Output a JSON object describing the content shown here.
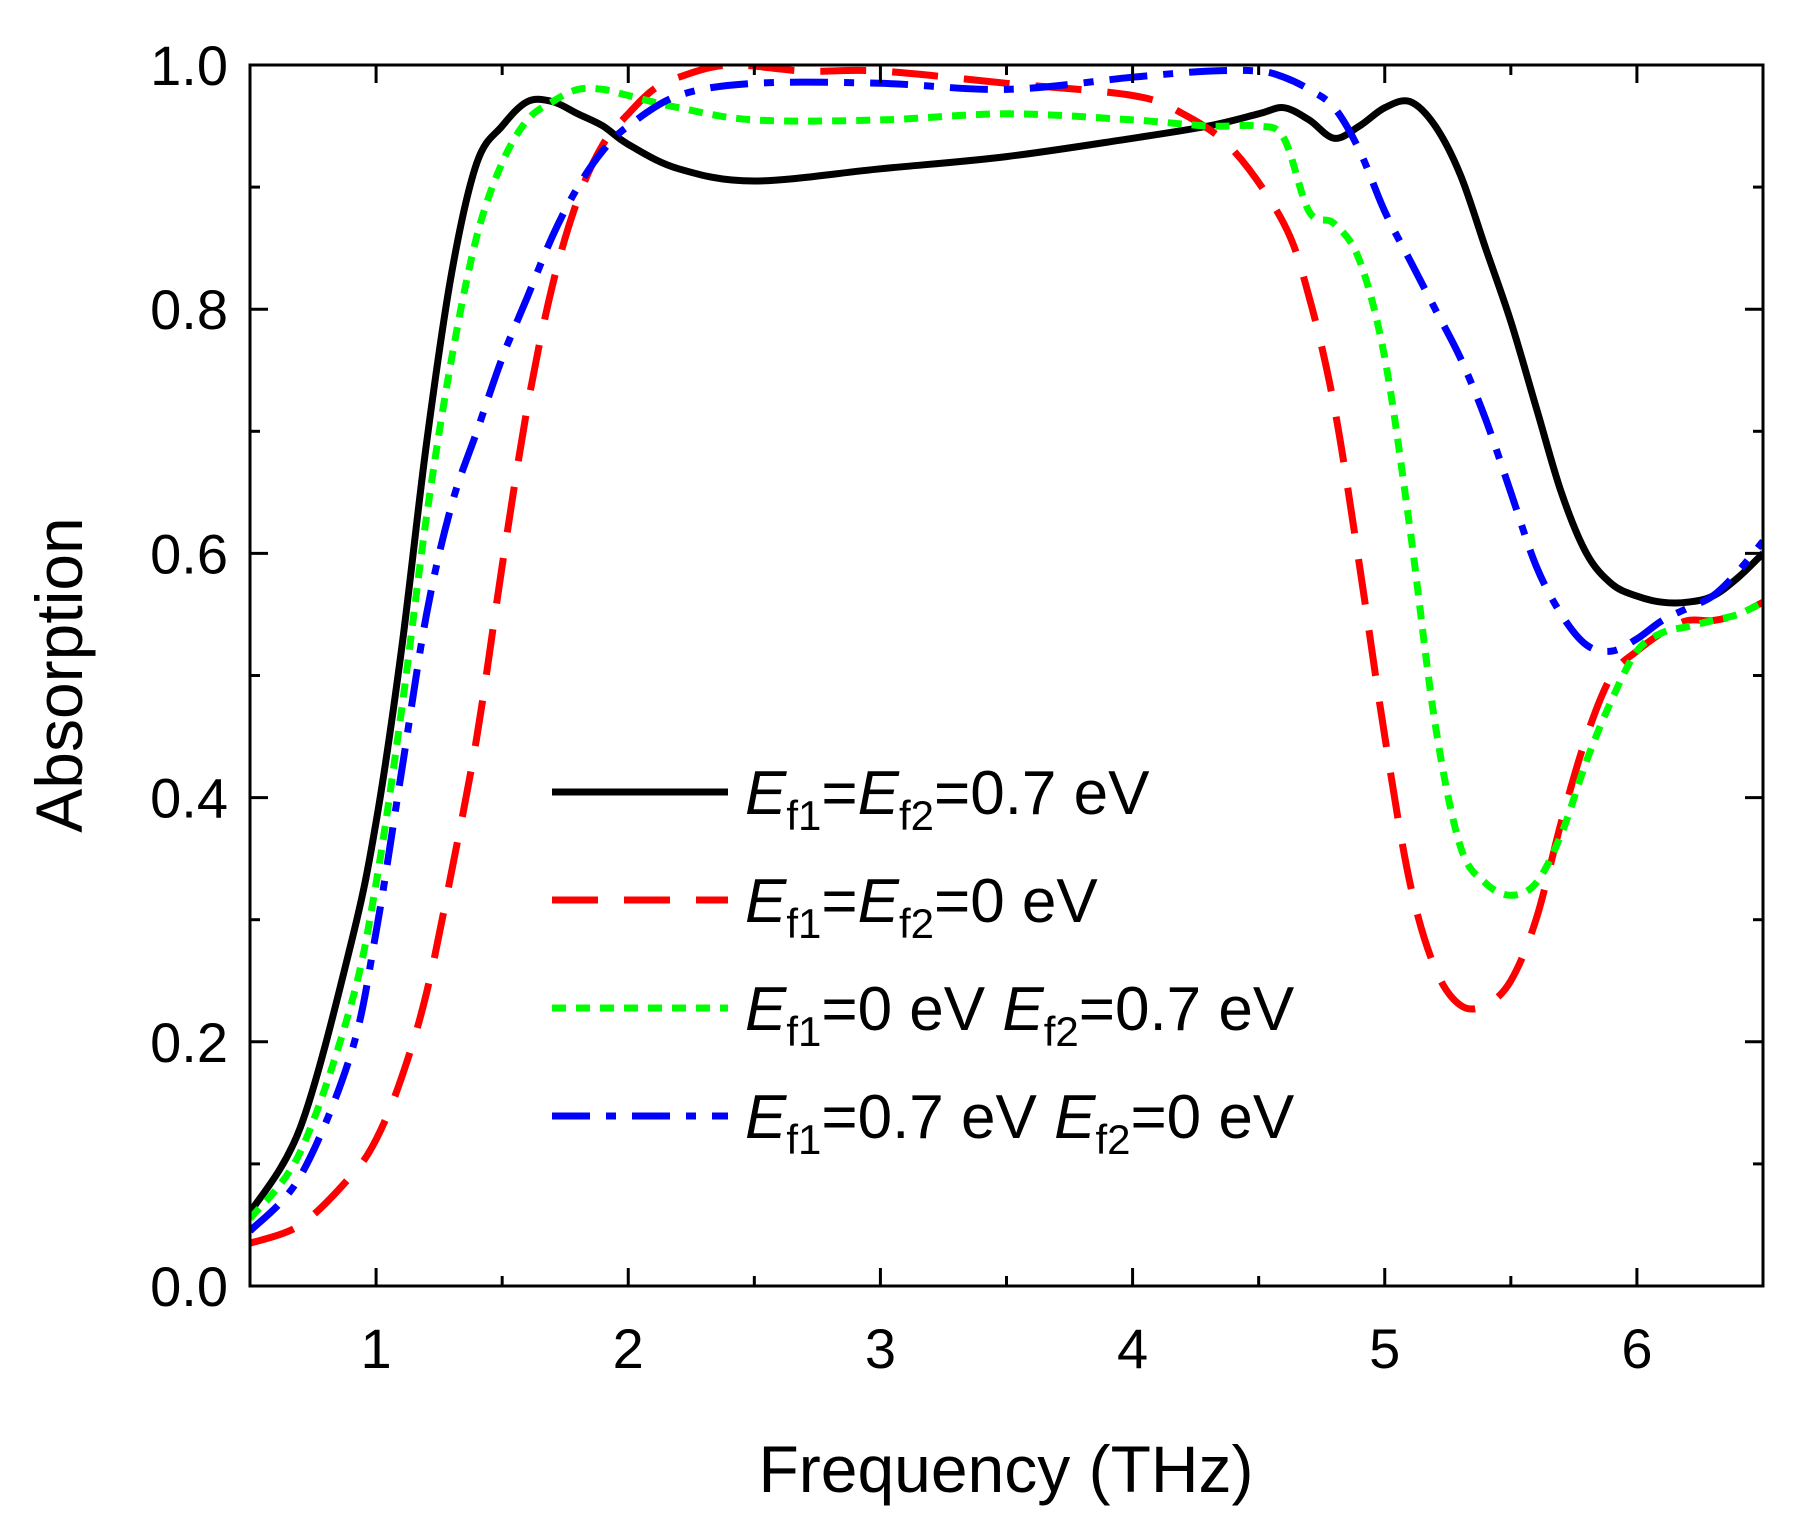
{
  "chart_data": {
    "type": "line",
    "title": "",
    "xlabel": "Frequency (THz)",
    "ylabel": "Absorption",
    "xlim": [
      0.5,
      6.5
    ],
    "ylim": [
      0.0,
      1.0
    ],
    "xticks": [
      "1",
      "2",
      "3",
      "4",
      "5",
      "6"
    ],
    "xtick_values": [
      1,
      2,
      3,
      4,
      5,
      6
    ],
    "yticks": [
      "0.0",
      "0.2",
      "0.4",
      "0.6",
      "0.8",
      "1.0"
    ],
    "ytick_values": [
      0.0,
      0.2,
      0.4,
      0.6,
      0.8,
      1.0
    ],
    "grid": false,
    "legend_position": "center-bottom",
    "series": [
      {
        "name": "Ef1=Ef2=0.7 eV",
        "label_parts": [
          {
            "t": "E",
            "italic": true
          },
          {
            "t": "f1",
            "sub": true
          },
          {
            "t": "="
          },
          {
            "t": "E",
            "italic": true
          },
          {
            "t": "f2",
            "sub": true
          },
          {
            "t": "=0.7 eV"
          }
        ],
        "color": "#000000",
        "style": "solid",
        "x": [
          0.5,
          0.7,
          0.9,
          1.0,
          1.1,
          1.2,
          1.3,
          1.4,
          1.5,
          1.6,
          1.7,
          1.8,
          1.9,
          2.0,
          2.2,
          2.5,
          3.0,
          3.5,
          4.0,
          4.3,
          4.5,
          4.6,
          4.7,
          4.8,
          4.9,
          5.0,
          5.1,
          5.2,
          5.3,
          5.4,
          5.5,
          5.6,
          5.7,
          5.8,
          5.9,
          6.0,
          6.1,
          6.2,
          6.3,
          6.4,
          6.5
        ],
        "y": [
          0.06,
          0.13,
          0.28,
          0.38,
          0.52,
          0.69,
          0.83,
          0.92,
          0.95,
          0.97,
          0.97,
          0.96,
          0.95,
          0.935,
          0.915,
          0.905,
          0.915,
          0.925,
          0.94,
          0.95,
          0.96,
          0.965,
          0.955,
          0.94,
          0.95,
          0.965,
          0.97,
          0.95,
          0.91,
          0.85,
          0.79,
          0.72,
          0.65,
          0.6,
          0.575,
          0.565,
          0.56,
          0.56,
          0.565,
          0.58,
          0.6
        ]
      },
      {
        "name": "Ef1=Ef2=0 eV",
        "label_parts": [
          {
            "t": "E",
            "italic": true
          },
          {
            "t": "f1",
            "sub": true
          },
          {
            "t": "="
          },
          {
            "t": "E",
            "italic": true
          },
          {
            "t": "f2",
            "sub": true
          },
          {
            "t": "=0 eV"
          }
        ],
        "color": "#ff0000",
        "style": "dashed",
        "x": [
          0.5,
          0.7,
          0.9,
          1.0,
          1.1,
          1.2,
          1.3,
          1.4,
          1.5,
          1.6,
          1.7,
          1.8,
          1.9,
          2.0,
          2.1,
          2.2,
          2.4,
          2.7,
          3.0,
          3.5,
          4.0,
          4.2,
          4.4,
          4.6,
          4.7,
          4.8,
          4.9,
          5.0,
          5.1,
          5.2,
          5.3,
          5.4,
          5.5,
          5.6,
          5.7,
          5.8,
          5.9,
          6.0,
          6.1,
          6.2,
          6.3,
          6.4,
          6.5
        ],
        "y": [
          0.035,
          0.05,
          0.09,
          0.12,
          0.17,
          0.24,
          0.34,
          0.45,
          0.59,
          0.72,
          0.82,
          0.89,
          0.935,
          0.96,
          0.98,
          0.99,
          1.0,
          0.995,
          0.995,
          0.985,
          0.975,
          0.96,
          0.93,
          0.87,
          0.81,
          0.72,
          0.59,
          0.45,
          0.33,
          0.26,
          0.23,
          0.23,
          0.25,
          0.3,
          0.38,
          0.45,
          0.5,
          0.52,
          0.535,
          0.545,
          0.545,
          0.55,
          0.56
        ]
      },
      {
        "name": "Ef1=0 eV Ef2=0.7 eV",
        "label_parts": [
          {
            "t": "E",
            "italic": true
          },
          {
            "t": "f1",
            "sub": true
          },
          {
            "t": "=0 eV "
          },
          {
            "t": "E",
            "italic": true
          },
          {
            "t": "f2",
            "sub": true
          },
          {
            "t": "=0.7 eV"
          }
        ],
        "color": "#00ff00",
        "style": "dotted",
        "x": [
          0.5,
          0.7,
          0.9,
          1.0,
          1.1,
          1.2,
          1.3,
          1.4,
          1.5,
          1.6,
          1.7,
          1.8,
          1.9,
          2.0,
          2.2,
          2.5,
          3.0,
          3.5,
          4.0,
          4.3,
          4.5,
          4.6,
          4.7,
          4.8,
          4.9,
          5.0,
          5.1,
          5.2,
          5.3,
          5.4,
          5.5,
          5.6,
          5.7,
          5.8,
          5.9,
          6.0,
          6.1,
          6.2,
          6.3,
          6.4,
          6.5
        ],
        "y": [
          0.055,
          0.11,
          0.23,
          0.33,
          0.47,
          0.63,
          0.76,
          0.86,
          0.92,
          0.955,
          0.97,
          0.98,
          0.98,
          0.975,
          0.965,
          0.955,
          0.955,
          0.96,
          0.955,
          0.95,
          0.95,
          0.94,
          0.88,
          0.87,
          0.84,
          0.76,
          0.62,
          0.46,
          0.36,
          0.33,
          0.32,
          0.33,
          0.37,
          0.43,
          0.48,
          0.52,
          0.535,
          0.54,
          0.545,
          0.55,
          0.56
        ]
      },
      {
        "name": "Ef1=0.7 eV Ef2=0 eV",
        "label_parts": [
          {
            "t": "E",
            "italic": true
          },
          {
            "t": "f1",
            "sub": true
          },
          {
            "t": "=0.7 eV "
          },
          {
            "t": "E",
            "italic": true
          },
          {
            "t": "f2",
            "sub": true
          },
          {
            "t": "=0 eV"
          }
        ],
        "color": "#0000ff",
        "style": "dashdot",
        "x": [
          0.5,
          0.7,
          0.9,
          1.0,
          1.1,
          1.2,
          1.3,
          1.4,
          1.5,
          1.6,
          1.7,
          1.8,
          1.9,
          2.0,
          2.2,
          2.5,
          3.0,
          3.5,
          4.0,
          4.3,
          4.5,
          4.6,
          4.7,
          4.8,
          4.9,
          5.0,
          5.1,
          5.2,
          5.3,
          5.4,
          5.5,
          5.6,
          5.7,
          5.8,
          5.9,
          6.0,
          6.1,
          6.2,
          6.3,
          6.4,
          6.5
        ],
        "y": [
          0.045,
          0.09,
          0.19,
          0.29,
          0.42,
          0.55,
          0.64,
          0.7,
          0.76,
          0.81,
          0.86,
          0.9,
          0.93,
          0.95,
          0.975,
          0.985,
          0.985,
          0.98,
          0.99,
          0.995,
          0.995,
          0.99,
          0.98,
          0.965,
          0.93,
          0.88,
          0.84,
          0.8,
          0.76,
          0.71,
          0.65,
          0.59,
          0.55,
          0.525,
          0.52,
          0.53,
          0.545,
          0.555,
          0.565,
          0.585,
          0.61
        ]
      }
    ]
  }
}
